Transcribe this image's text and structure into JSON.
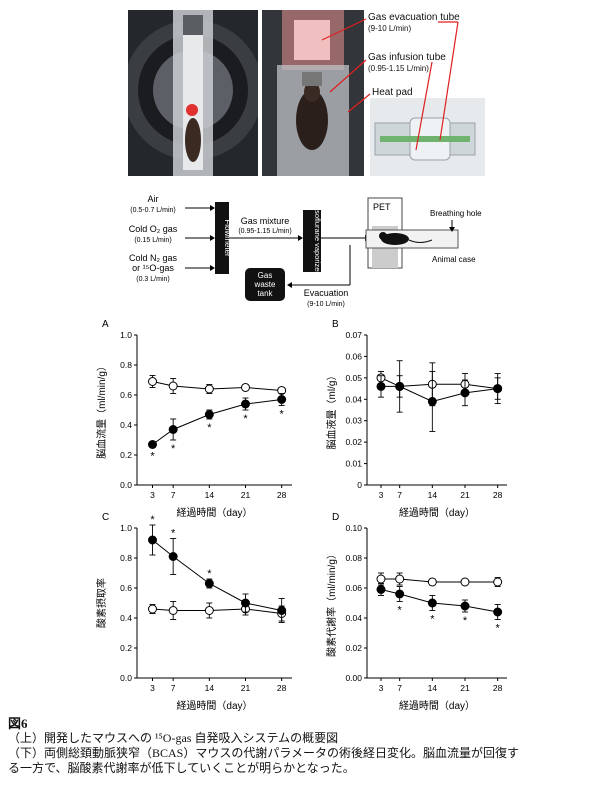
{
  "photos": {
    "left_alt": "",
    "callouts": {
      "evac_tube": "Gas evacuation tube",
      "evac_rate": "(9-10 L/min)",
      "infusion_tube": "Gas infusion tube",
      "infusion_rate": "(0.95-1.15 L/min)",
      "heat_pad": "Heat pad"
    }
  },
  "schematic": {
    "air": "Air",
    "air_rate": "(0.5-0.7 L/min)",
    "o2": "Cold O₂ gas",
    "o2_rate": "(0.15 L/min)",
    "n2": "Cold N₂ gas",
    "o15": "or ¹⁵O-gas",
    "n2_rate": "(0.3 L/min)",
    "flowmeter": "Flowmeter",
    "gas_mixture": "Gas mixture",
    "mixture_rate": "(0.95-1.15 L/min)",
    "vaporizer": "Isoflurane vaporizer",
    "pet": "PET",
    "breathing_hole": "Breathing hole",
    "animal_case": "Animal case",
    "waste_1": "Gas",
    "waste_2": "waste",
    "waste_3": "tank",
    "evacuation": "Evacuation",
    "evac_rate": "(9-10 L/min)"
  },
  "chart_data": [
    {
      "panel": "A",
      "type": "scatter",
      "xlabel": "経過時間（day）",
      "ylabel": "脳血流量（ml/min/g）",
      "x": [
        3,
        7,
        14,
        21,
        28
      ],
      "xticks": [
        "3",
        "7",
        "14",
        "21",
        "28"
      ],
      "ylim": [
        0,
        1.0
      ],
      "yticks": [
        "0.0",
        "0.2",
        "0.4",
        "0.6",
        "0.8",
        "1.0"
      ],
      "series": [
        {
          "marker": "open",
          "values": [
            0.69,
            0.66,
            0.64,
            0.65,
            0.63
          ],
          "err": [
            0.04,
            0.05,
            0.03,
            0.02,
            0.02
          ]
        },
        {
          "marker": "filled",
          "values": [
            0.27,
            0.37,
            0.47,
            0.54,
            0.57
          ],
          "err": [
            0.02,
            0.07,
            0.03,
            0.04,
            0.04
          ]
        }
      ],
      "stars": [
        "*",
        "*",
        "*",
        "*",
        "*"
      ]
    },
    {
      "panel": "B",
      "type": "scatter",
      "xlabel": "経過時間（day）",
      "ylabel": "脳血液量（ml/g）",
      "x": [
        3,
        7,
        14,
        21,
        28
      ],
      "xticks": [
        "3",
        "7",
        "14",
        "21",
        "28"
      ],
      "ylim": [
        0,
        0.07
      ],
      "yticks": [
        "0",
        "0.01",
        "0.02",
        "0.03",
        "0.04",
        "0.05",
        "0.06",
        "0.07"
      ],
      "series": [
        {
          "marker": "open",
          "values": [
            0.05,
            0.046,
            0.047,
            0.047,
            0.045
          ],
          "err": [
            0.003,
            0.005,
            0.01,
            0.005,
            0.005
          ]
        },
        {
          "marker": "filled",
          "values": [
            0.046,
            0.046,
            0.039,
            0.043,
            0.045
          ],
          "err": [
            0.005,
            0.012,
            0.014,
            0.006,
            0.007
          ]
        }
      ],
      "stars": []
    },
    {
      "panel": "C",
      "type": "scatter",
      "xlabel": "経過時間（day）",
      "ylabel": "酸素摂取率",
      "x": [
        3,
        7,
        14,
        21,
        28
      ],
      "xticks": [
        "3",
        "7",
        "14",
        "21",
        "28"
      ],
      "ylim": [
        0,
        1.0
      ],
      "yticks": [
        "0.0",
        "0.2",
        "0.4",
        "0.6",
        "0.8",
        "1.0"
      ],
      "series": [
        {
          "marker": "open",
          "values": [
            0.46,
            0.45,
            0.45,
            0.46,
            0.43
          ],
          "err": [
            0.03,
            0.06,
            0.05,
            0.04,
            0.05
          ]
        },
        {
          "marker": "filled",
          "values": [
            0.92,
            0.81,
            0.63,
            0.5,
            0.45
          ],
          "err": [
            0.1,
            0.12,
            0.03,
            0.06,
            0.08
          ]
        }
      ],
      "stars": [
        "*",
        "*",
        "*",
        "",
        ""
      ]
    },
    {
      "panel": "D",
      "type": "scatter",
      "xlabel": "経過時間（day）",
      "ylabel": "酸素代謝率（ml/min/g）",
      "x": [
        3,
        7,
        14,
        21,
        28
      ],
      "xticks": [
        "3",
        "7",
        "14",
        "21",
        "28"
      ],
      "ylim": [
        0,
        0.1
      ],
      "yticks": [
        "0.00",
        "0.02",
        "0.04",
        "0.06",
        "0.08",
        "0.10"
      ],
      "series": [
        {
          "marker": "open",
          "values": [
            0.066,
            0.066,
            0.064,
            0.064,
            0.064
          ],
          "err": [
            0.004,
            0.004,
            0.002,
            0.002,
            0.003
          ]
        },
        {
          "marker": "filled",
          "values": [
            0.059,
            0.056,
            0.05,
            0.048,
            0.044
          ],
          "err": [
            0.004,
            0.005,
            0.005,
            0.004,
            0.005
          ]
        }
      ],
      "stars": [
        "",
        "*",
        "*",
        "*",
        "*"
      ]
    }
  ],
  "caption": {
    "label": "図6",
    "line1": "（上）開発したマウスへの ¹⁵O-gas 自発吸入システムの概要図",
    "line2": "（下）両側総頚動脈狭窄（BCAS）マウスの代謝パラメータの術後経日変化。脳血流量が回復す",
    "line3": "る一方で、脳酸素代謝率が低下していくことが明らかとなった。"
  }
}
